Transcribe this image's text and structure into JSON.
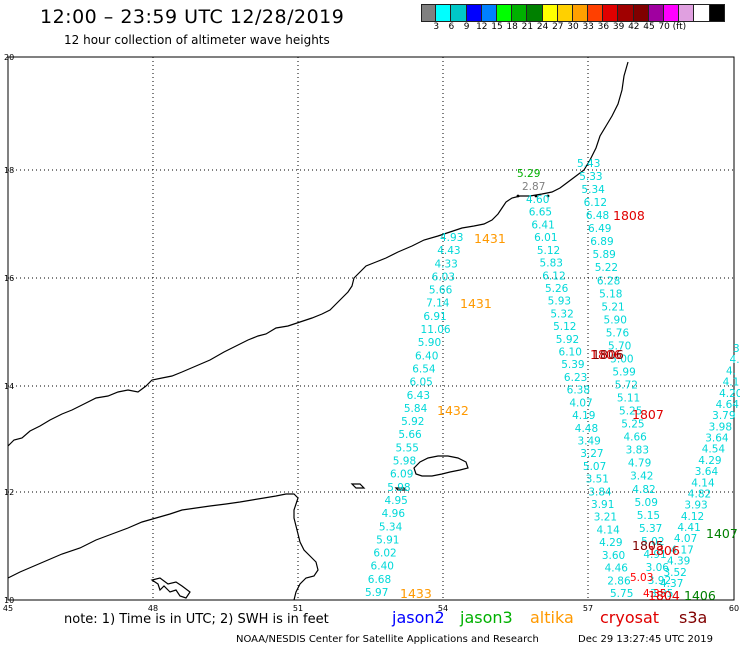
{
  "title": "12:00 – 23:59 UTC 12/28/2019",
  "subtitle": "12 hour collection of altimeter wave heights",
  "colorbar": {
    "colors": [
      "#808080",
      "#00ffff",
      "#00c8c8",
      "#0000ff",
      "#0080ff",
      "#00ff00",
      "#00b000",
      "#008000",
      "#ffff00",
      "#ffd000",
      "#ffa000",
      "#ff4000",
      "#e00000",
      "#a00000",
      "#800000",
      "#a000a0",
      "#ff00ff",
      "#e0a0e0",
      "#ffffff",
      "#000000"
    ],
    "labels": [
      "3",
      "6",
      "9",
      "12",
      "15",
      "18",
      "21",
      "24",
      "27",
      "30",
      "33",
      "36",
      "39",
      "42",
      "45",
      "70",
      "(ft)"
    ]
  },
  "axes": {
    "lon_ticks": [
      "45",
      "48",
      "51",
      "54",
      "57",
      "60"
    ],
    "lat_ticks": [
      "10",
      "12",
      "14",
      "16",
      "18",
      "20"
    ]
  },
  "tracks": {
    "jason3_a": {
      "color": "#00d8d8",
      "values": [
        "4.93",
        "4.43",
        "4.33",
        "6.03",
        "5.66",
        "7.14",
        "6.91",
        "11.06",
        "5.90",
        "6.40",
        "6.54",
        "6.05",
        "6.43",
        "5.84",
        "5.92",
        "5.66",
        "5.55",
        "5.98",
        "6.09",
        "5.98",
        "4.95",
        "4.96",
        "5.34",
        "5.91",
        "6.02",
        "6.40",
        "6.68",
        "5.97"
      ]
    },
    "jason3_b": {
      "color": "#00d8d8",
      "values": [
        "4.60",
        "6.65",
        "6.41",
        "6.01",
        "5.12",
        "5.83",
        "6.12",
        "5.26",
        "5.93",
        "5.32",
        "5.12",
        "5.92",
        "6.10",
        "5.39",
        "6.23",
        "6.38",
        "4.07",
        "4.19",
        "4.48",
        "3.49",
        "3.27",
        "5.07",
        "3.51",
        "3.84",
        "3.91",
        "3.21",
        "4.14",
        "4.29",
        "3.60",
        "4.46",
        "2.86",
        "5.75"
      ]
    },
    "jason3_c": {
      "color": "#00d8d8",
      "values": [
        "5.43",
        "5.33",
        "5.34",
        "6.12",
        "6.48",
        "6.49",
        "6.89",
        "5.89",
        "5.22",
        "6.28",
        "5.18",
        "5.21",
        "5.90",
        "5.76",
        "5.70",
        "5.00",
        "5.99",
        "5.72",
        "5.11",
        "5.25",
        "5.25",
        "4.66",
        "3.83",
        "4.79",
        "3.42",
        "4.82",
        "5.09",
        "5.15",
        "5.37",
        "5.02",
        "4.91",
        "3.06",
        "3.92",
        "3.95"
      ]
    },
    "jason3_d": {
      "color": "#00d8d8",
      "values": [
        "3",
        "4.",
        "4.",
        "4.18",
        "4.20",
        "4.64",
        "3.79",
        "3.98",
        "3.64",
        "4.54",
        "4.29",
        "3.64",
        "4.14",
        "4.82",
        "3.93",
        "4.12",
        "4.41",
        "4.07",
        "4.17",
        "4.39",
        "3.52",
        "4.37"
      ]
    },
    "grey": {
      "color": "#808080",
      "values": [
        "2.87"
      ]
    },
    "green_top": {
      "color": "#00b000",
      "values": [
        "5.29"
      ]
    },
    "wave_red": {
      "color": "#ff0000",
      "values": [
        "5.03",
        "4.35"
      ]
    }
  },
  "times": [
    {
      "label": "1431",
      "color": "#ff9900"
    },
    {
      "label": "1431",
      "color": "#ff9900"
    },
    {
      "label": "1432",
      "color": "#ff9900"
    },
    {
      "label": "1433",
      "color": "#ff9900"
    },
    {
      "label": "1808",
      "color": "#e00000"
    },
    {
      "label": "1807",
      "color": "#e00000"
    },
    {
      "label": "1806",
      "color": "#e00000"
    },
    {
      "label": "1806",
      "color": "#800000"
    },
    {
      "label": "1805",
      "color": "#800000"
    },
    {
      "label": "1806",
      "color": "#e00000"
    },
    {
      "label": "1407",
      "color": "#008000"
    },
    {
      "label": "1406",
      "color": "#008000"
    },
    {
      "label": "1804",
      "color": "#e00000"
    }
  ],
  "note": "note: 1) Time is in UTC; 2) SWH is in feet",
  "legend": [
    {
      "label": "jason2",
      "color": "#0000ff"
    },
    {
      "label": "jason3",
      "color": "#00b000"
    },
    {
      "label": "altika",
      "color": "#ff9900"
    },
    {
      "label": "cryosat",
      "color": "#e00000"
    },
    {
      "label": "s3a",
      "color": "#800000"
    }
  ],
  "credit": "NOAA/NESDIS Center for Satellite Applications and Research",
  "timestamp": "Dec 29 13:27:45 UTC 2019"
}
